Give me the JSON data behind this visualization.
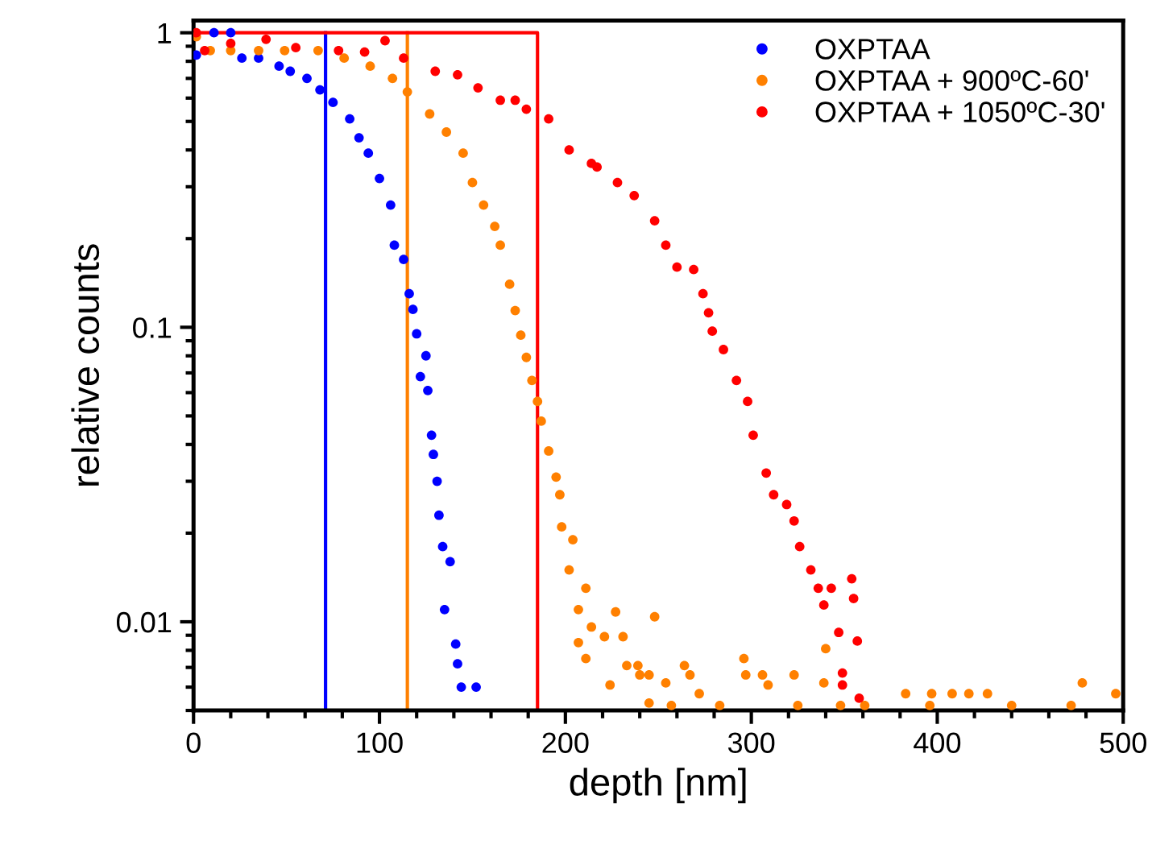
{
  "chart_data": {
    "type": "scatter",
    "xlabel": "depth [nm]",
    "ylabel": "relative counts",
    "log": "y",
    "legend": "top right",
    "marker": "circle",
    "grid": false,
    "xlim": [
      0,
      500
    ],
    "xticks": [
      0,
      100,
      200,
      300,
      400,
      500
    ],
    "ylim": [
      0.005,
      1.1
    ],
    "yticks": [
      {
        "value": 0.01,
        "label": "0.01"
      },
      {
        "value": 0.1,
        "label": "0.1"
      },
      {
        "value": 1,
        "label": "1"
      }
    ],
    "series": [
      {
        "name": "OXPTAA",
        "color": "#0000ff",
        "x": [
          1.5,
          11,
          20,
          26,
          35,
          46,
          52,
          61,
          68,
          75,
          84,
          89,
          94,
          100,
          106,
          108,
          113,
          116,
          118,
          120,
          122,
          125,
          126,
          128,
          129,
          131,
          132,
          134,
          135,
          138,
          141,
          142,
          144,
          152
        ],
        "values": [
          0.84,
          1.0,
          1.0,
          0.82,
          0.82,
          0.77,
          0.74,
          0.7,
          0.64,
          0.58,
          0.51,
          0.44,
          0.39,
          0.32,
          0.26,
          0.19,
          0.17,
          0.13,
          0.115,
          0.095,
          0.068,
          0.08,
          0.061,
          0.043,
          0.037,
          0.03,
          0.023,
          0.018,
          0.011,
          0.016,
          0.0084,
          0.0072,
          0.006,
          0.006
        ]
      },
      {
        "name": "OXPTAA + 900ºC-60'",
        "color": "#ff8000",
        "x": [
          1.5,
          9,
          20,
          35,
          49,
          67,
          81,
          95,
          107,
          115,
          127,
          136,
          145,
          150,
          156,
          162,
          165,
          170,
          173,
          176,
          179,
          182,
          185,
          187,
          191,
          195,
          197,
          198,
          202,
          204,
          207,
          207,
          211,
          211,
          214,
          221,
          224,
          227,
          231,
          233,
          239,
          240,
          245,
          245,
          248,
          254,
          257,
          264,
          267,
          272,
          283,
          296,
          297,
          306,
          309,
          323,
          325,
          339,
          340,
          348,
          361,
          383,
          396,
          397,
          408,
          417,
          427,
          440,
          472,
          478,
          496
        ],
        "values": [
          0.97,
          0.87,
          0.87,
          0.87,
          0.87,
          0.87,
          0.82,
          0.77,
          0.7,
          0.63,
          0.53,
          0.46,
          0.39,
          0.31,
          0.26,
          0.22,
          0.19,
          0.14,
          0.114,
          0.094,
          0.079,
          0.066,
          0.056,
          0.048,
          0.038,
          0.031,
          0.027,
          0.021,
          0.015,
          0.019,
          0.011,
          0.0085,
          0.013,
          0.0075,
          0.0096,
          0.0089,
          0.0061,
          0.0108,
          0.0089,
          0.0071,
          0.0071,
          0.0066,
          0.0066,
          0.0053,
          0.0104,
          0.0062,
          0.0052,
          0.0071,
          0.0066,
          0.0057,
          0.0052,
          0.0075,
          0.0066,
          0.0066,
          0.0061,
          0.0066,
          0.0052,
          0.0062,
          0.0081,
          0.0052,
          0.0052,
          0.0057,
          0.0052,
          0.0057,
          0.0057,
          0.0057,
          0.0057,
          0.0052,
          0.0052,
          0.0062,
          0.0057
        ]
      },
      {
        "name": "OXPTAA + 1050ºC-30'",
        "color": "#ff0000",
        "x": [
          1.5,
          6,
          20,
          39,
          55,
          78,
          92,
          103,
          113,
          130,
          142,
          153,
          165,
          173,
          179,
          191,
          202,
          214,
          217,
          228,
          237,
          248,
          254,
          260,
          269,
          274,
          277,
          279,
          285,
          292,
          298,
          301,
          308,
          312,
          319,
          323,
          326,
          332,
          336,
          339,
          343,
          347,
          349,
          349,
          354,
          355,
          357,
          358
        ],
        "values": [
          1.0,
          0.87,
          0.92,
          0.95,
          0.89,
          0.87,
          0.86,
          0.94,
          0.82,
          0.74,
          0.72,
          0.65,
          0.59,
          0.59,
          0.55,
          0.51,
          0.4,
          0.36,
          0.35,
          0.31,
          0.28,
          0.23,
          0.19,
          0.16,
          0.157,
          0.13,
          0.112,
          0.097,
          0.084,
          0.066,
          0.056,
          0.043,
          0.032,
          0.027,
          0.025,
          0.022,
          0.018,
          0.015,
          0.013,
          0.0114,
          0.013,
          0.0092,
          0.0067,
          0.0061,
          0.014,
          0.012,
          0.0086,
          0.0055
        ]
      },
      {
        "type": "line",
        "marker": "none",
        "color": "#0000ff",
        "x": [
          71,
          71
        ],
        "values": [
          0.005,
          1
        ]
      },
      {
        "type": "line",
        "marker": "none",
        "color": "#ff8000",
        "x": [
          115,
          115
        ],
        "values": [
          0.005,
          1
        ]
      },
      {
        "type": "line",
        "marker": "none",
        "color": "#ff0000",
        "x": [
          0,
          185,
          185
        ],
        "values": [
          1,
          1,
          0.005
        ]
      }
    ]
  }
}
